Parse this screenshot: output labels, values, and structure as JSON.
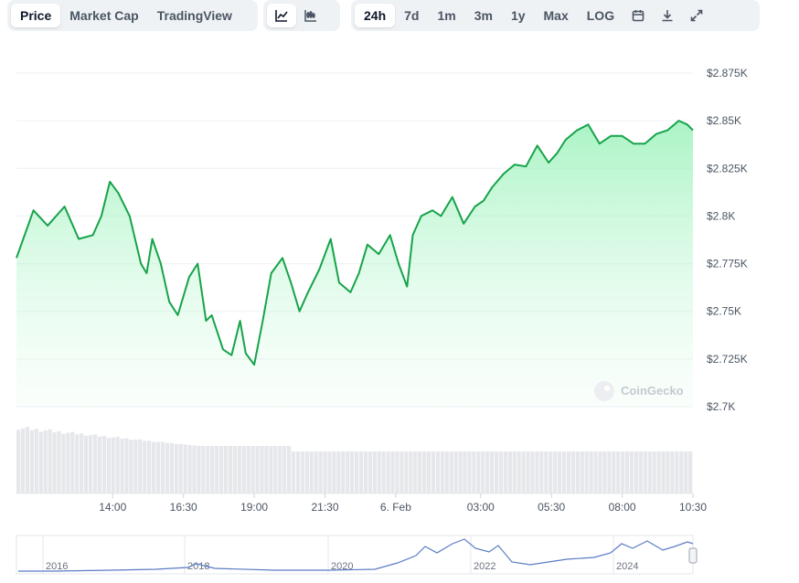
{
  "tabs": [
    "Price",
    "Market Cap",
    "TradingView"
  ],
  "active_tab": "Price",
  "chart_styles": [
    "line-chart-icon",
    "candlestick-icon"
  ],
  "ranges": [
    "24h",
    "7d",
    "1m",
    "3m",
    "1y",
    "Max",
    "LOG"
  ],
  "active_range": "24h",
  "tool_icons": [
    "calendar-icon",
    "download-icon",
    "expand-icon"
  ],
  "watermark": "CoinGecko",
  "colors": {
    "line": "#16a34a",
    "fill": "#bbf7d0",
    "volume": "#e5e7eb",
    "navigator": "#5b7bc4"
  },
  "chart_data": {
    "type": "area",
    "y_ticks": [
      "$2.875K",
      "$2.85K",
      "$2.825K",
      "$2.8K",
      "$2.775K",
      "$2.75K",
      "$2.725K",
      "$2.7K"
    ],
    "y_tick_values": [
      2875,
      2850,
      2825,
      2800,
      2775,
      2750,
      2725,
      2700
    ],
    "ylim": [
      2700,
      2875
    ],
    "x_ticks": [
      "14:00",
      "16:30",
      "19:00",
      "21:30",
      "6. Feb",
      "03:00",
      "05:30",
      "08:00",
      "10:30"
    ],
    "x_tick_hours": [
      14,
      16.5,
      19,
      21.5,
      24,
      27,
      29.5,
      32,
      34.5
    ],
    "xlim_hours": [
      10.6,
      34.5
    ],
    "series": [
      {
        "x_hours": [
          10.6,
          11.2,
          11.7,
          12.3,
          12.8,
          13.3,
          13.6,
          13.9,
          14.2,
          14.6,
          15.0,
          15.2,
          15.4,
          15.7,
          16.0,
          16.3,
          16.7,
          17.0,
          17.3,
          17.5,
          17.9,
          18.2,
          18.5,
          18.7,
          19.0,
          19.3,
          19.6,
          20.0,
          20.3,
          20.6,
          20.9,
          21.3,
          21.7,
          22.0,
          22.4,
          22.7,
          23.0,
          23.4,
          23.8,
          24.1,
          24.4,
          24.6,
          24.9,
          25.3,
          25.6,
          26.0,
          26.4,
          26.8,
          27.1,
          27.4,
          27.8,
          28.2,
          28.6,
          29.0,
          29.4,
          29.7,
          30.0,
          30.4,
          30.8,
          31.2,
          31.6,
          32.0,
          32.4,
          32.8,
          33.2,
          33.6,
          34.0,
          34.3,
          34.5
        ],
        "values": [
          2778,
          2803,
          2795,
          2805,
          2788,
          2790,
          2800,
          2818,
          2812,
          2800,
          2775,
          2770,
          2788,
          2775,
          2755,
          2748,
          2768,
          2775,
          2745,
          2748,
          2730,
          2727,
          2745,
          2728,
          2722,
          2745,
          2770,
          2778,
          2765,
          2750,
          2760,
          2772,
          2788,
          2765,
          2760,
          2770,
          2785,
          2780,
          2790,
          2775,
          2763,
          2790,
          2800,
          2803,
          2800,
          2810,
          2796,
          2805,
          2808,
          2815,
          2822,
          2827,
          2826,
          2837,
          2828,
          2833,
          2840,
          2845,
          2848,
          2838,
          2842,
          2842,
          2838,
          2838,
          2843,
          2845,
          2850,
          2848,
          2845
        ]
      }
    ],
    "navigator_ticks": [
      "2016",
      "2018",
      "2020",
      "2022",
      "2024"
    ]
  }
}
